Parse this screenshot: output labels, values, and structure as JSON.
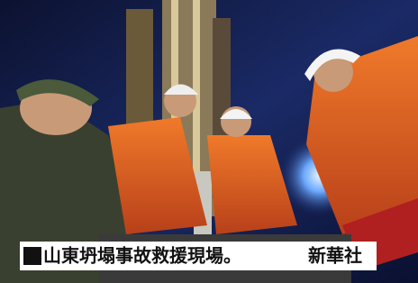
{
  "caption": {
    "text": "山東坍塌事故救援現場。",
    "credit": "新華社"
  }
}
